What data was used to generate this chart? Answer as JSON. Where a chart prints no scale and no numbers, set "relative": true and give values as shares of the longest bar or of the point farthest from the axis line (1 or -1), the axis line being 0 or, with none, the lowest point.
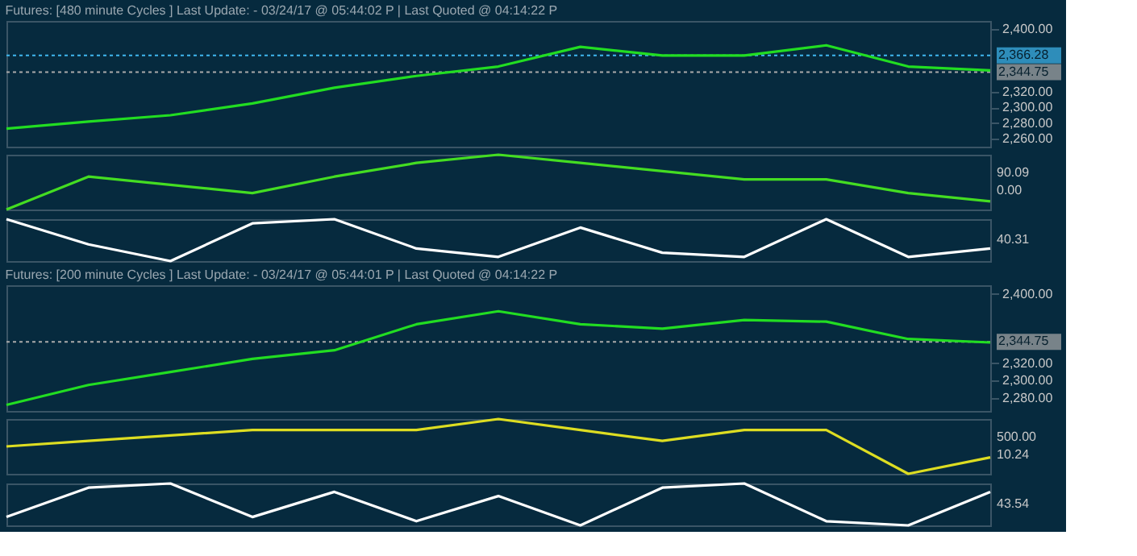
{
  "chart_data": [
    {
      "type": "line",
      "title": "Futures: [480 minute Cycles ] Last Update:  - 03/24/17 @ 05:44:02 P | Last Quoted @ 04:14:22 P",
      "categories": [
        null,
        null,
        null,
        null,
        null,
        null,
        null,
        null,
        null,
        null,
        null,
        null,
        null
      ],
      "ylim": [
        2250,
        2410
      ],
      "yticks": [
        {
          "value": 2260,
          "label": "2,260.00"
        },
        {
          "value": 2280,
          "label": "2,280.00"
        },
        {
          "value": 2300,
          "label": "2,300.00"
        },
        {
          "value": 2320,
          "label": "2,320.00"
        },
        {
          "value": 2400,
          "label": "2,400.00"
        }
      ],
      "grid": false,
      "series": [
        {
          "color": "#22dd22",
          "values": [
            2273,
            2282,
            2290,
            2305,
            2325,
            2340,
            2352,
            2377,
            2366,
            2366,
            2379,
            2352,
            2347
          ]
        }
      ],
      "ref_lines": [
        {
          "axis": "y",
          "value": 2366.28,
          "label": "2,366.28",
          "color": "#40b8f0",
          "line_style": "dotted"
        },
        {
          "axis": "y",
          "value": 2344.75,
          "label": "2,344.75",
          "color": "#aaaaaa",
          "line_style": "dotted"
        }
      ]
    },
    {
      "type": "line",
      "relative": true,
      "categories": [
        null,
        null,
        null,
        null,
        null,
        null,
        null,
        null,
        null,
        null,
        null,
        null,
        null
      ],
      "annotations": [
        "90.09",
        "0.00"
      ],
      "series": [
        {
          "color": "#44dd22",
          "values": [
            0.0,
            0.6,
            0.45,
            0.3,
            0.6,
            0.85,
            1.0,
            0.85,
            0.7,
            0.55,
            0.55,
            0.3,
            0.15
          ]
        }
      ]
    },
    {
      "type": "line",
      "relative": true,
      "categories": [
        null,
        null,
        null,
        null,
        null,
        null,
        null,
        null,
        null,
        null,
        null,
        null,
        null
      ],
      "annotations": [
        "40.31"
      ],
      "series": [
        {
          "color": "#ffffff",
          "values": [
            1.0,
            0.4,
            0.0,
            0.9,
            1.0,
            0.3,
            0.1,
            0.8,
            0.2,
            0.1,
            1.0,
            0.1,
            0.3
          ]
        }
      ]
    },
    {
      "type": "line",
      "title": "Futures: [200 minute Cycles ] Last Update:  - 03/24/17 @ 05:44:01 P | Last Quoted @ 04:14:22 P",
      "categories": [
        null,
        null,
        null,
        null,
        null,
        null,
        null,
        null,
        null,
        null,
        null,
        null,
        null
      ],
      "ylim": [
        2265,
        2410
      ],
      "yticks": [
        {
          "value": 2280,
          "label": "2,280.00"
        },
        {
          "value": 2300,
          "label": "2,300.00"
        },
        {
          "value": 2320,
          "label": "2,320.00"
        },
        {
          "value": 2400,
          "label": "2,400.00"
        }
      ],
      "grid": false,
      "series": [
        {
          "color": "#22dd22",
          "values": [
            2272,
            2295,
            2310,
            2325,
            2335,
            2365,
            2380,
            2365,
            2360,
            2370,
            2368,
            2348,
            2344
          ]
        }
      ],
      "ref_lines": [
        {
          "axis": "y",
          "value": 2344.75,
          "label": "2,344.75",
          "color": "#aaaaaa",
          "line_style": "dotted"
        }
      ]
    },
    {
      "type": "line",
      "relative": true,
      "categories": [
        null,
        null,
        null,
        null,
        null,
        null,
        null,
        null,
        null,
        null,
        null,
        null,
        null
      ],
      "annotations": [
        "500.00",
        "10.24"
      ],
      "series": [
        {
          "color": "#dddd22",
          "values": [
            0.5,
            0.6,
            0.7,
            0.8,
            0.8,
            0.8,
            1.0,
            0.8,
            0.6,
            0.8,
            0.8,
            0.0,
            0.3
          ]
        }
      ]
    },
    {
      "type": "line",
      "relative": true,
      "categories": [
        null,
        null,
        null,
        null,
        null,
        null,
        null,
        null,
        null,
        null,
        null,
        null,
        null
      ],
      "annotations": [
        "43.54"
      ],
      "series": [
        {
          "color": "#ffffff",
          "values": [
            0.2,
            0.9,
            1.0,
            0.2,
            0.8,
            0.1,
            0.7,
            0.0,
            0.9,
            1.0,
            0.1,
            0.0,
            0.8
          ]
        }
      ]
    }
  ]
}
